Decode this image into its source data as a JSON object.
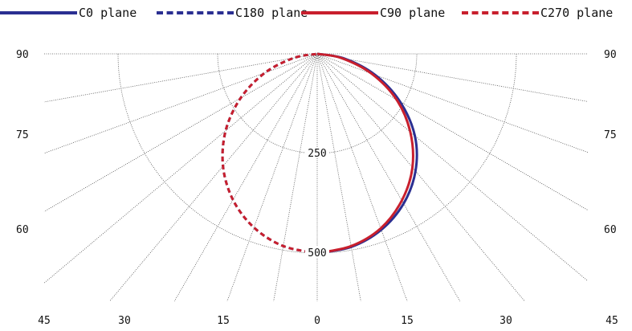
{
  "chart_data": {
    "type": "polar",
    "title": "",
    "units": "",
    "radial_ticks": [
      250,
      500
    ],
    "rmax": 500,
    "angle_ticks_bottom": [
      "45",
      "30",
      "15",
      "0",
      "15",
      "30",
      "45"
    ],
    "angle_ticks_side": [
      "90",
      "75",
      "60"
    ],
    "grid": true,
    "legend": "top",
    "series": [
      {
        "name": "C0 plane",
        "color": "#2b2f91",
        "dash": false,
        "angles": [
          0,
          10,
          20,
          30,
          40,
          50,
          60,
          70,
          80,
          90
        ],
        "values": [
          500,
          492,
          470,
          434,
          384,
          320,
          240,
          155,
          70,
          0
        ]
      },
      {
        "name": "C180 plane",
        "color": "#2b2f91",
        "dash": true,
        "angles": [
          0,
          10,
          20,
          30,
          40,
          50,
          60,
          70,
          80,
          90
        ],
        "values": [
          500,
          490,
          464,
          423,
          368,
          300,
          222,
          140,
          60,
          0
        ]
      },
      {
        "name": "C90 plane",
        "color": "#c81f2d",
        "dash": false,
        "angles": [
          0,
          10,
          20,
          30,
          40,
          50,
          60,
          70,
          80,
          90
        ],
        "values": [
          500,
          490,
          466,
          425,
          372,
          305,
          230,
          145,
          62,
          0
        ]
      },
      {
        "name": "C270 plane",
        "color": "#c81f2d",
        "dash": true,
        "angles": [
          0,
          10,
          20,
          30,
          40,
          50,
          60,
          70,
          80,
          90
        ],
        "values": [
          500,
          490,
          464,
          423,
          368,
          300,
          222,
          140,
          60,
          0
        ]
      }
    ]
  }
}
